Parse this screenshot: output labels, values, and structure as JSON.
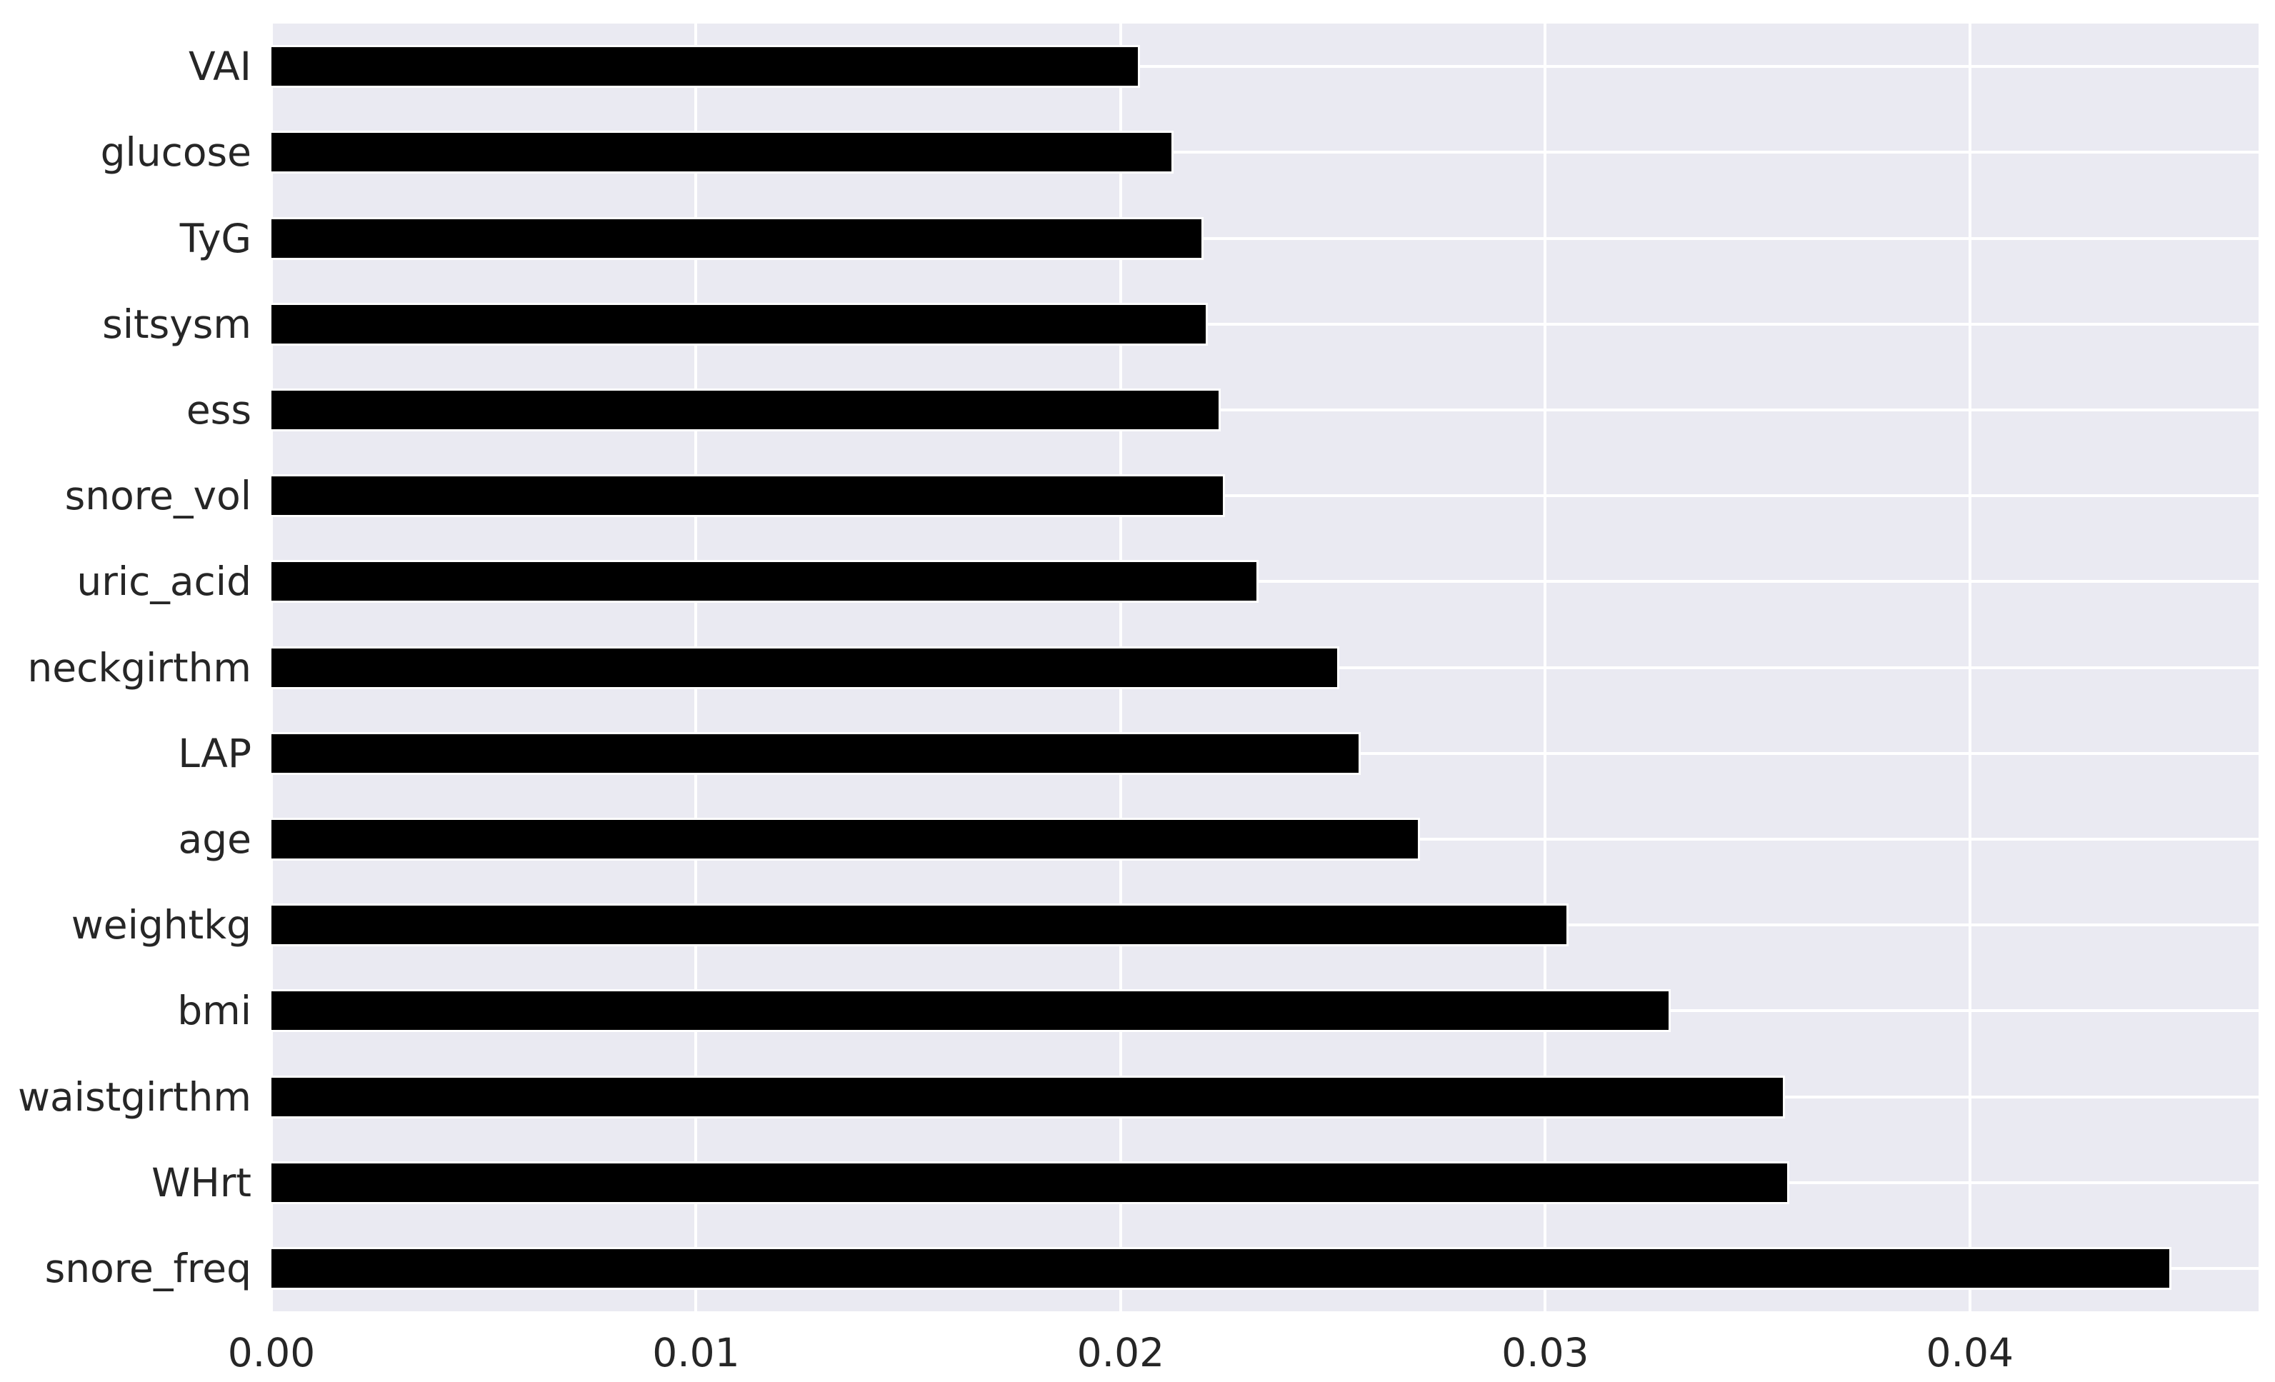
{
  "chart_data": {
    "type": "bar",
    "orientation": "horizontal",
    "title": "",
    "xlabel": "",
    "ylabel": "",
    "categories": [
      "VAI",
      "glucose",
      "TyG",
      "sitsysm",
      "ess",
      "snore_vol",
      "uric_acid",
      "neckgirthm",
      "LAP",
      "age",
      "weightkg",
      "bmi",
      "waistgirthm",
      "WHrt",
      "snore_freq"
    ],
    "values": [
      0.0204,
      0.0212,
      0.0219,
      0.022,
      0.0223,
      0.0224,
      0.0232,
      0.0251,
      0.0256,
      0.027,
      0.0305,
      0.0329,
      0.0356,
      0.0357,
      0.0447
    ],
    "xlim": [
      0,
      0.0468
    ],
    "x_ticks": [
      0,
      0.01,
      0.02,
      0.03,
      0.04
    ],
    "x_tick_labels": [
      "0.00",
      "0.01",
      "0.02",
      "0.03",
      "0.04"
    ],
    "grid": true,
    "legend": false,
    "colors": {
      "bar": "#000000",
      "bar_edge": "#ffffff",
      "plot_background": "#eaeaf2",
      "gridline": "#ffffff",
      "tick_text": "#262626",
      "figure_background": "#ffffff"
    }
  }
}
